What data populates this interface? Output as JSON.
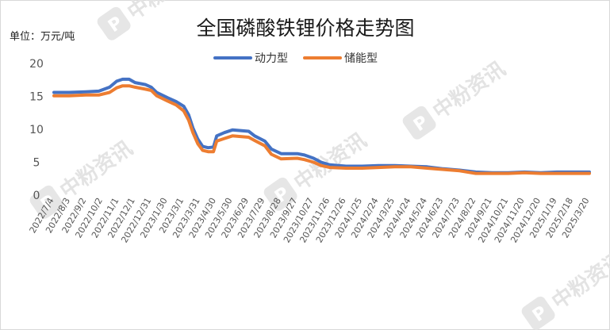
{
  "unit_label": "单位：万元/吨",
  "watermark": {
    "text": "中粉资讯",
    "icon": "p-logo-icon"
  },
  "chart_data": {
    "type": "line",
    "title": "全国磷酸铁锂价格走势图",
    "xlabel": "",
    "ylabel": "",
    "ylim": [
      0,
      20
    ],
    "yticks": [
      0,
      5,
      10,
      15,
      20
    ],
    "grid": false,
    "legend_position": "top-center",
    "x_range": [
      "2022/7/4",
      "2025/3/20"
    ],
    "x_tick_labels": [
      "2022/7/4",
      "2022/8/3",
      "2022/9/2",
      "2022/10/2",
      "2022/11/1",
      "2022/12/1",
      "2022/12/31",
      "2023/1/30",
      "2023/3/1",
      "2023/3/31",
      "2023/4/30",
      "2023/5/30",
      "2023/6/29",
      "2023/7/29",
      "2023/8/28",
      "2023/9/27",
      "2023/10/27",
      "2023/11/26",
      "2023/12/26",
      "2024/1/25",
      "2024/2/24",
      "2024/3/25",
      "2024/4/24",
      "2024/5/24",
      "2024/6/23",
      "2024/7/23",
      "2024/8/22",
      "2024/9/21",
      "2024/10/21",
      "2024/11/20",
      "2024/12/20",
      "2025/1/19",
      "2025/2/18",
      "2025/3/20"
    ],
    "series": [
      {
        "name": "动力型",
        "color": "#4472c4",
        "points": [
          [
            "2022/7/4",
            15.6
          ],
          [
            "2022/8/1",
            15.6
          ],
          [
            "2022/9/1",
            15.7
          ],
          [
            "2022/9/25",
            15.8
          ],
          [
            "2022/10/15",
            16.4
          ],
          [
            "2022/10/28",
            17.3
          ],
          [
            "2022/11/8",
            17.6
          ],
          [
            "2022/11/20",
            17.6
          ],
          [
            "2022/12/1",
            17.1
          ],
          [
            "2022/12/20",
            16.8
          ],
          [
            "2022/12/31",
            16.4
          ],
          [
            "2023/1/10",
            15.6
          ],
          [
            "2023/1/30",
            14.8
          ],
          [
            "2023/2/15",
            14.2
          ],
          [
            "2023/3/1",
            13.5
          ],
          [
            "2023/3/10",
            12.2
          ],
          [
            "2023/3/18",
            10.2
          ],
          [
            "2023/3/27",
            8.5
          ],
          [
            "2023/4/5",
            7.4
          ],
          [
            "2023/4/15",
            7.2
          ],
          [
            "2023/4/25",
            7.3
          ],
          [
            "2023/5/1",
            9.0
          ],
          [
            "2023/5/15",
            9.5
          ],
          [
            "2023/5/30",
            9.9
          ],
          [
            "2023/6/29",
            9.7
          ],
          [
            "2023/7/10",
            9.0
          ],
          [
            "2023/7/29",
            8.2
          ],
          [
            "2023/8/10",
            7.0
          ],
          [
            "2023/8/28",
            6.3
          ],
          [
            "2023/9/27",
            6.3
          ],
          [
            "2023/10/10",
            6.1
          ],
          [
            "2023/10/27",
            5.6
          ],
          [
            "2023/11/10",
            5.0
          ],
          [
            "2023/11/26",
            4.6
          ],
          [
            "2023/12/26",
            4.4
          ],
          [
            "2024/1/25",
            4.4
          ],
          [
            "2024/2/24",
            4.5
          ],
          [
            "2024/3/25",
            4.5
          ],
          [
            "2024/4/24",
            4.4
          ],
          [
            "2024/5/24",
            4.3
          ],
          [
            "2024/6/23",
            4.0
          ],
          [
            "2024/7/23",
            3.8
          ],
          [
            "2024/8/22",
            3.5
          ],
          [
            "2024/9/21",
            3.4
          ],
          [
            "2024/10/21",
            3.4
          ],
          [
            "2024/11/20",
            3.5
          ],
          [
            "2024/12/20",
            3.4
          ],
          [
            "2025/1/19",
            3.5
          ],
          [
            "2025/2/18",
            3.5
          ],
          [
            "2025/3/20",
            3.5
          ]
        ]
      },
      {
        "name": "储能型",
        "color": "#ed7d31",
        "points": [
          [
            "2022/7/4",
            15.1
          ],
          [
            "2022/8/1",
            15.1
          ],
          [
            "2022/9/1",
            15.2
          ],
          [
            "2022/9/25",
            15.2
          ],
          [
            "2022/10/15",
            15.6
          ],
          [
            "2022/10/28",
            16.3
          ],
          [
            "2022/11/8",
            16.6
          ],
          [
            "2022/11/20",
            16.6
          ],
          [
            "2022/12/1",
            16.4
          ],
          [
            "2022/12/20",
            16.1
          ],
          [
            "2022/12/31",
            15.9
          ],
          [
            "2023/1/10",
            15.1
          ],
          [
            "2023/1/30",
            14.3
          ],
          [
            "2023/2/15",
            13.7
          ],
          [
            "2023/3/1",
            12.8
          ],
          [
            "2023/3/10",
            11.4
          ],
          [
            "2023/3/18",
            9.5
          ],
          [
            "2023/3/27",
            7.8
          ],
          [
            "2023/4/5",
            6.8
          ],
          [
            "2023/4/15",
            6.6
          ],
          [
            "2023/4/25",
            6.6
          ],
          [
            "2023/5/1",
            8.2
          ],
          [
            "2023/5/15",
            8.6
          ],
          [
            "2023/5/30",
            9.0
          ],
          [
            "2023/6/29",
            8.8
          ],
          [
            "2023/7/10",
            8.3
          ],
          [
            "2023/7/29",
            7.5
          ],
          [
            "2023/8/10",
            6.2
          ],
          [
            "2023/8/28",
            5.5
          ],
          [
            "2023/9/27",
            5.6
          ],
          [
            "2023/10/10",
            5.4
          ],
          [
            "2023/10/27",
            5.0
          ],
          [
            "2023/11/10",
            4.5
          ],
          [
            "2023/11/26",
            4.2
          ],
          [
            "2023/12/26",
            4.1
          ],
          [
            "2024/1/25",
            4.1
          ],
          [
            "2024/2/24",
            4.2
          ],
          [
            "2024/3/25",
            4.3
          ],
          [
            "2024/4/24",
            4.3
          ],
          [
            "2024/5/24",
            4.1
          ],
          [
            "2024/6/23",
            3.9
          ],
          [
            "2024/7/23",
            3.7
          ],
          [
            "2024/8/22",
            3.3
          ],
          [
            "2024/9/21",
            3.3
          ],
          [
            "2024/10/21",
            3.3
          ],
          [
            "2024/11/20",
            3.4
          ],
          [
            "2024/12/20",
            3.3
          ],
          [
            "2025/1/19",
            3.3
          ],
          [
            "2025/2/18",
            3.3
          ],
          [
            "2025/3/20",
            3.3
          ]
        ]
      }
    ]
  }
}
